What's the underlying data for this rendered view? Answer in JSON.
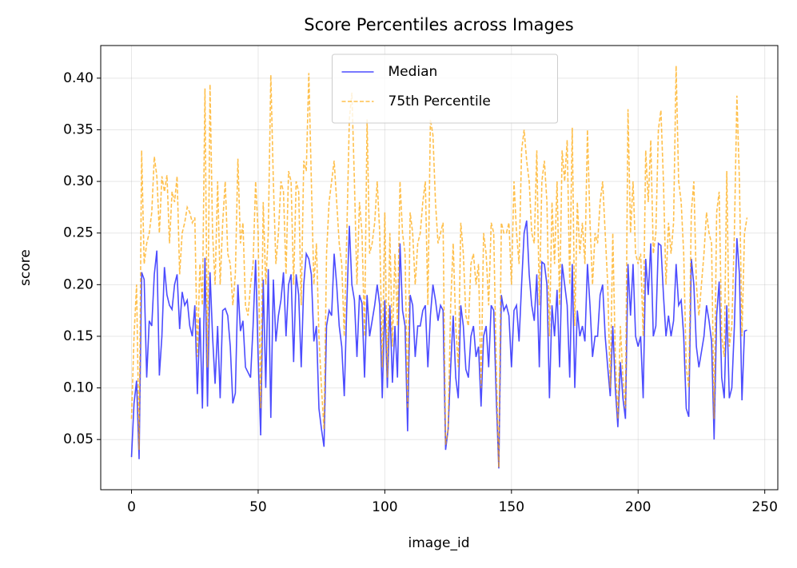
{
  "chart_data": {
    "type": "line",
    "title": "Score Percentiles across Images",
    "x_label": "image_id",
    "y_label": "score",
    "x": [
      0,
      1,
      2,
      3,
      4,
      5,
      6,
      7,
      8,
      9,
      10,
      11,
      12,
      13,
      14,
      15,
      16,
      17,
      18,
      19,
      20,
      21,
      22,
      23,
      24,
      25,
      26,
      27,
      28,
      29,
      30,
      31,
      32,
      33,
      34,
      35,
      36,
      37,
      38,
      39,
      40,
      41,
      42,
      43,
      44,
      45,
      46,
      47,
      48,
      49,
      50,
      51,
      52,
      53,
      54,
      55,
      56,
      57,
      58,
      59,
      60,
      61,
      62,
      63,
      64,
      65,
      66,
      67,
      68,
      69,
      70,
      71,
      72,
      73,
      74,
      75,
      76,
      77,
      78,
      79,
      80,
      81,
      82,
      83,
      84,
      85,
      86,
      87,
      88,
      89,
      90,
      91,
      92,
      93,
      94,
      95,
      96,
      97,
      98,
      99,
      100,
      101,
      102,
      103,
      104,
      105,
      106,
      107,
      108,
      109,
      110,
      111,
      112,
      113,
      114,
      115,
      116,
      117,
      118,
      119,
      120,
      121,
      122,
      123,
      124,
      125,
      126,
      127,
      128,
      129,
      130,
      131,
      132,
      133,
      134,
      135,
      136,
      137,
      138,
      139,
      140,
      141,
      142,
      143,
      144,
      145,
      146,
      147,
      148,
      149,
      150,
      151,
      152,
      153,
      154,
      155,
      156,
      157,
      158,
      159,
      160,
      161,
      162,
      163,
      164,
      165,
      166,
      167,
      168,
      169,
      170,
      171,
      172,
      173,
      174,
      175,
      176,
      177,
      178,
      179,
      180,
      181,
      182,
      183,
      184,
      185,
      186,
      187,
      188,
      189,
      190,
      191,
      192,
      193,
      194,
      195,
      196,
      197,
      198,
      199,
      200,
      201,
      202,
      203,
      204,
      205,
      206,
      207,
      208,
      209,
      210,
      211,
      212,
      213,
      214,
      215,
      216,
      217,
      218,
      219,
      220,
      221,
      222,
      223,
      224,
      225,
      226,
      227,
      228,
      229,
      230,
      231,
      232,
      233,
      234,
      235,
      236,
      237,
      238,
      239,
      240,
      241,
      242,
      243
    ],
    "series": [
      {
        "name": "Median",
        "color": "#0000ff",
        "linestyle": "solid",
        "values": [
          0.033,
          0.085,
          0.107,
          0.031,
          0.212,
          0.205,
          0.11,
          0.165,
          0.16,
          0.21,
          0.233,
          0.112,
          0.15,
          0.217,
          0.19,
          0.18,
          0.176,
          0.2,
          0.21,
          0.157,
          0.193,
          0.18,
          0.185,
          0.16,
          0.15,
          0.18,
          0.094,
          0.168,
          0.08,
          0.226,
          0.082,
          0.212,
          0.15,
          0.104,
          0.16,
          0.09,
          0.175,
          0.177,
          0.17,
          0.14,
          0.085,
          0.095,
          0.2,
          0.155,
          0.165,
          0.12,
          0.115,
          0.11,
          0.16,
          0.224,
          0.13,
          0.054,
          0.205,
          0.1,
          0.215,
          0.071,
          0.205,
          0.145,
          0.17,
          0.185,
          0.212,
          0.15,
          0.2,
          0.21,
          0.125,
          0.21,
          0.19,
          0.12,
          0.2,
          0.23,
          0.225,
          0.21,
          0.145,
          0.16,
          0.08,
          0.06,
          0.043,
          0.16,
          0.175,
          0.17,
          0.23,
          0.2,
          0.16,
          0.14,
          0.092,
          0.18,
          0.257,
          0.2,
          0.185,
          0.13,
          0.19,
          0.182,
          0.11,
          0.19,
          0.15,
          0.165,
          0.18,
          0.2,
          0.18,
          0.09,
          0.185,
          0.1,
          0.18,
          0.105,
          0.16,
          0.11,
          0.24,
          0.175,
          0.16,
          0.058,
          0.19,
          0.18,
          0.13,
          0.16,
          0.16,
          0.175,
          0.18,
          0.12,
          0.17,
          0.2,
          0.185,
          0.165,
          0.18,
          0.175,
          0.04,
          0.06,
          0.12,
          0.17,
          0.11,
          0.09,
          0.18,
          0.16,
          0.118,
          0.11,
          0.15,
          0.16,
          0.13,
          0.14,
          0.082,
          0.15,
          0.16,
          0.12,
          0.18,
          0.175,
          0.09,
          0.022,
          0.19,
          0.175,
          0.18,
          0.17,
          0.12,
          0.175,
          0.18,
          0.145,
          0.2,
          0.25,
          0.262,
          0.21,
          0.18,
          0.165,
          0.21,
          0.12,
          0.222,
          0.22,
          0.2,
          0.09,
          0.18,
          0.15,
          0.195,
          0.12,
          0.22,
          0.2,
          0.18,
          0.11,
          0.22,
          0.1,
          0.175,
          0.15,
          0.16,
          0.145,
          0.22,
          0.18,
          0.13,
          0.15,
          0.15,
          0.19,
          0.2,
          0.15,
          0.12,
          0.092,
          0.16,
          0.1,
          0.062,
          0.125,
          0.09,
          0.07,
          0.22,
          0.17,
          0.22,
          0.15,
          0.14,
          0.15,
          0.09,
          0.225,
          0.19,
          0.24,
          0.15,
          0.16,
          0.24,
          0.238,
          0.19,
          0.15,
          0.17,
          0.15,
          0.165,
          0.22,
          0.18,
          0.185,
          0.15,
          0.08,
          0.072,
          0.225,
          0.2,
          0.14,
          0.12,
          0.135,
          0.15,
          0.18,
          0.165,
          0.145,
          0.05,
          0.17,
          0.203,
          0.11,
          0.09,
          0.18,
          0.09,
          0.1,
          0.16,
          0.245,
          0.21,
          0.088,
          0.155,
          0.156
        ]
      },
      {
        "name": "75th Percentile",
        "color": "#ffa500",
        "linestyle": "dashed",
        "values": [
          0.07,
          0.15,
          0.2,
          0.04,
          0.33,
          0.22,
          0.24,
          0.25,
          0.27,
          0.324,
          0.305,
          0.25,
          0.305,
          0.29,
          0.306,
          0.24,
          0.29,
          0.28,
          0.305,
          0.21,
          0.25,
          0.26,
          0.275,
          0.27,
          0.26,
          0.265,
          0.13,
          0.22,
          0.18,
          0.39,
          0.12,
          0.394,
          0.25,
          0.2,
          0.3,
          0.2,
          0.26,
          0.3,
          0.23,
          0.22,
          0.18,
          0.21,
          0.322,
          0.24,
          0.26,
          0.18,
          0.17,
          0.2,
          0.22,
          0.3,
          0.25,
          0.08,
          0.28,
          0.2,
          0.25,
          0.403,
          0.3,
          0.22,
          0.25,
          0.3,
          0.29,
          0.21,
          0.31,
          0.3,
          0.2,
          0.3,
          0.29,
          0.18,
          0.32,
          0.31,
          0.405,
          0.3,
          0.2,
          0.24,
          0.15,
          0.1,
          0.06,
          0.23,
          0.28,
          0.3,
          0.32,
          0.28,
          0.24,
          0.22,
          0.15,
          0.25,
          0.36,
          0.386,
          0.3,
          0.2,
          0.28,
          0.25,
          0.15,
          0.36,
          0.23,
          0.24,
          0.26,
          0.3,
          0.25,
          0.12,
          0.27,
          0.11,
          0.25,
          0.14,
          0.23,
          0.16,
          0.3,
          0.25,
          0.23,
          0.08,
          0.27,
          0.25,
          0.2,
          0.24,
          0.25,
          0.28,
          0.3,
          0.18,
          0.36,
          0.345,
          0.28,
          0.24,
          0.25,
          0.26,
          0.045,
          0.06,
          0.18,
          0.24,
          0.16,
          0.12,
          0.26,
          0.23,
          0.17,
          0.16,
          0.22,
          0.23,
          0.2,
          0.22,
          0.1,
          0.25,
          0.23,
          0.18,
          0.26,
          0.25,
          0.12,
          0.023,
          0.26,
          0.25,
          0.25,
          0.26,
          0.2,
          0.3,
          0.25,
          0.22,
          0.33,
          0.35,
          0.32,
          0.3,
          0.25,
          0.24,
          0.33,
          0.18,
          0.3,
          0.32,
          0.28,
          0.15,
          0.28,
          0.22,
          0.3,
          0.18,
          0.33,
          0.3,
          0.34,
          0.2,
          0.352,
          0.16,
          0.28,
          0.23,
          0.26,
          0.22,
          0.35,
          0.26,
          0.2,
          0.25,
          0.24,
          0.28,
          0.3,
          0.25,
          0.2,
          0.1,
          0.25,
          0.13,
          0.07,
          0.16,
          0.11,
          0.08,
          0.37,
          0.25,
          0.3,
          0.23,
          0.22,
          0.23,
          0.15,
          0.33,
          0.28,
          0.34,
          0.23,
          0.25,
          0.35,
          0.369,
          0.3,
          0.2,
          0.26,
          0.23,
          0.26,
          0.412,
          0.3,
          0.28,
          0.23,
          0.12,
          0.1,
          0.27,
          0.3,
          0.2,
          0.17,
          0.2,
          0.23,
          0.27,
          0.25,
          0.24,
          0.07,
          0.27,
          0.29,
          0.15,
          0.13,
          0.31,
          0.14,
          0.16,
          0.25,
          0.383,
          0.3,
          0.15,
          0.25,
          0.265
        ]
      }
    ],
    "xlim": [
      -12.15,
      255.15
    ],
    "xticks": [
      0,
      50,
      100,
      150,
      200,
      250
    ],
    "ylim": [
      0.0014,
      0.4316
    ],
    "yticks": [
      0.05,
      {
        "value": 0.1,
        "label": "0.10"
      },
      0.15,
      {
        "value": 0.2,
        "label": "0.20"
      },
      0.25,
      {
        "value": 0.3,
        "label": "0.30"
      },
      0.35,
      {
        "value": 0.4,
        "label": "0.40"
      }
    ],
    "grid": true,
    "legend": "upper center"
  }
}
